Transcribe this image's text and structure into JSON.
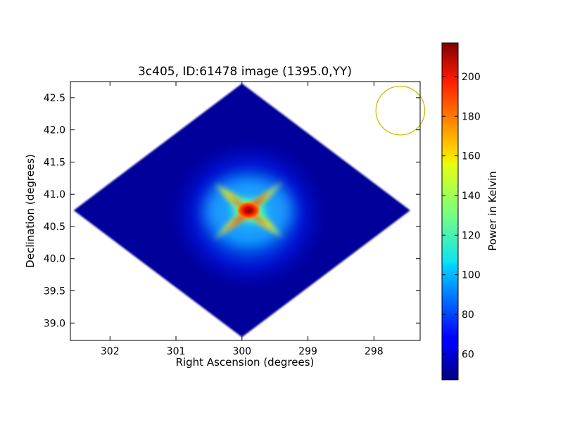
{
  "chart_data": {
    "type": "heatmap",
    "title": "3c405, ID:61478 image (1395.0,YY)",
    "xlabel": "Right Ascension (degrees)",
    "ylabel": "Declination (degrees)",
    "xlim": [
      302.6,
      297.3
    ],
    "ylim": [
      38.73,
      42.75
    ],
    "xticks": [
      302,
      301,
      300,
      299,
      298
    ],
    "xtick_labels": [
      "302",
      "301",
      "300",
      "299",
      "298"
    ],
    "yticks": [
      39.0,
      39.5,
      40.0,
      40.5,
      41.0,
      41.5,
      42.0,
      42.5
    ],
    "ytick_labels": [
      "39.0",
      "39.5",
      "40.0",
      "40.5",
      "41.0",
      "41.5",
      "42.0",
      "42.5"
    ],
    "colorbar": {
      "label": "Power in Kelvin",
      "range": [
        47,
        217
      ],
      "ticks": [
        60,
        80,
        100,
        120,
        140,
        160,
        180,
        200
      ],
      "tick_labels": [
        "60",
        "80",
        "100",
        "120",
        "140",
        "160",
        "180",
        "200"
      ],
      "colormap": "jet"
    },
    "map": {
      "footprint_vertices_ra_dec": [
        [
          302.55,
          40.75
        ],
        [
          300.0,
          42.72
        ],
        [
          297.45,
          40.75
        ],
        [
          300.0,
          38.78
        ]
      ],
      "background_level": 52,
      "peak": {
        "ra": 299.9,
        "dec": 40.75,
        "value": 217
      },
      "halo_level": 95,
      "arm_level": 165
    },
    "beam_circle": {
      "ra": 297.6,
      "dec": 42.3,
      "radius_deg": 0.37,
      "color": "#bfbf00"
    }
  }
}
